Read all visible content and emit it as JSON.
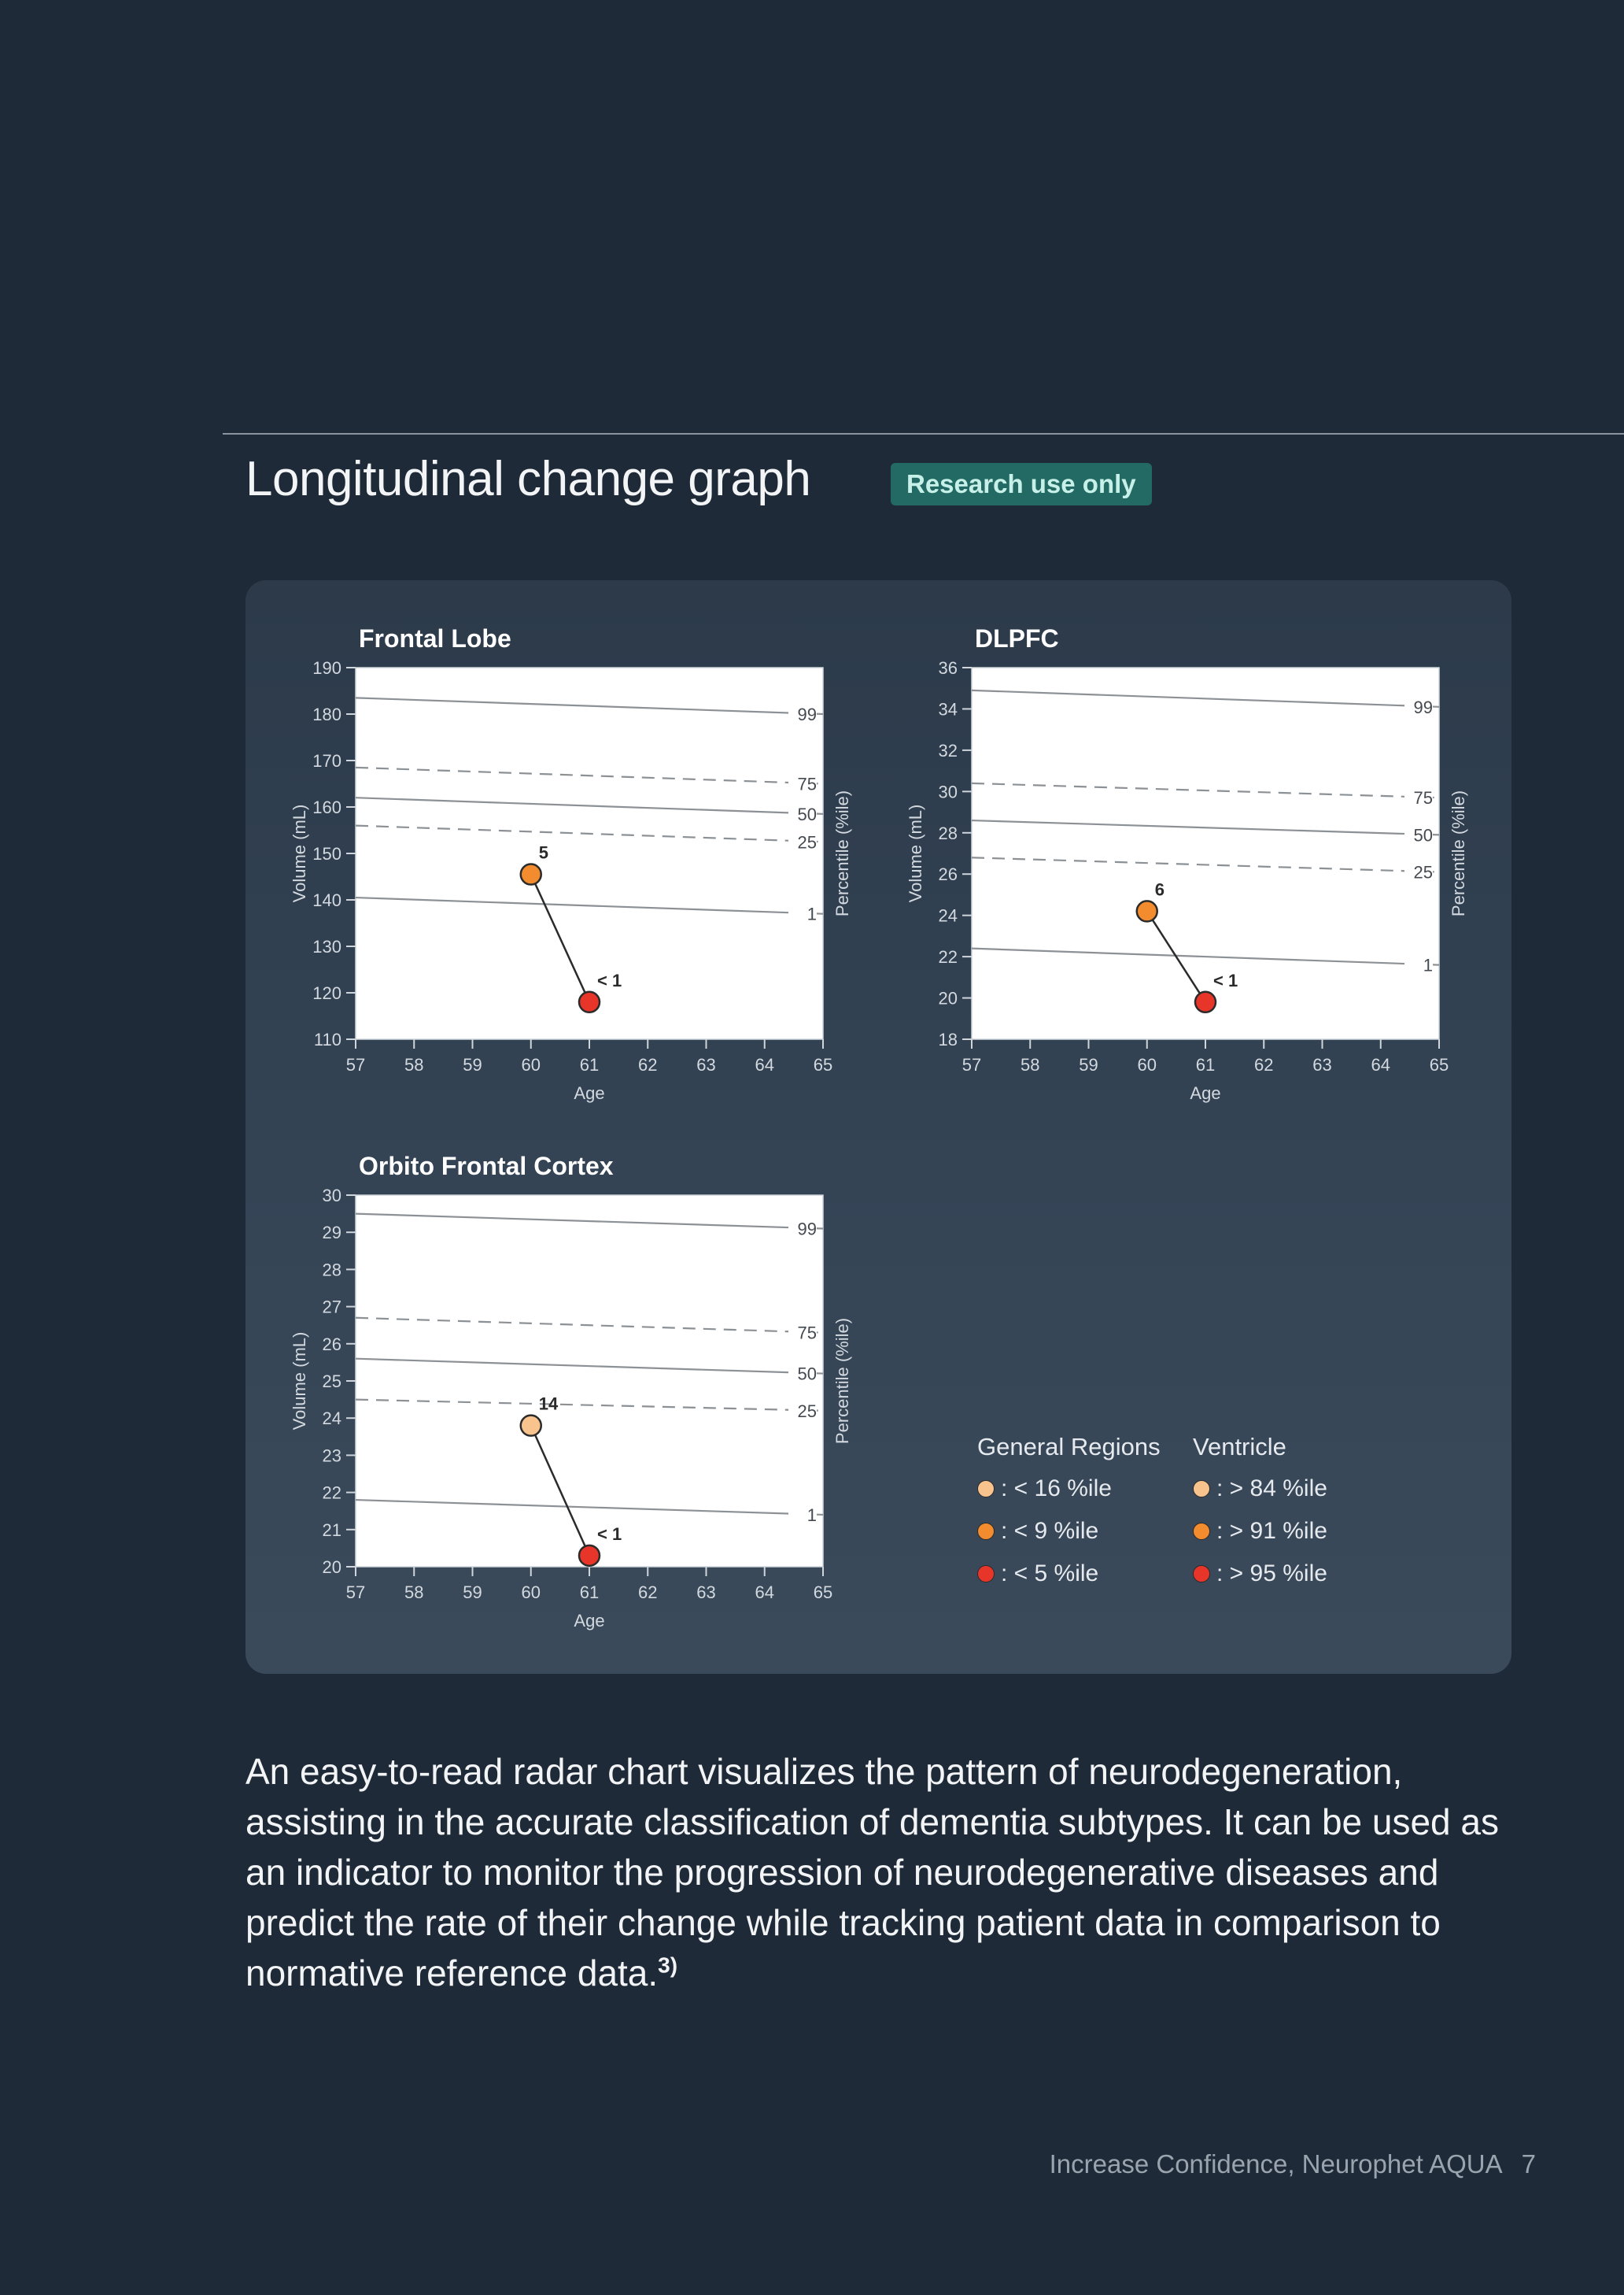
{
  "header": {
    "title": "Longitudinal change graph",
    "badge": "Research use only"
  },
  "chart_data": [
    {
      "type": "line",
      "title": "Frontal Lobe",
      "xlabel": "Age",
      "ylabel": "Volume (mL)",
      "y2label": "Percentile (%ile)",
      "xlim": [
        57,
        65
      ],
      "ylim": [
        110,
        190
      ],
      "xticks": [
        57,
        58,
        59,
        60,
        61,
        62,
        63,
        64,
        65
      ],
      "yticks": [
        110,
        120,
        130,
        140,
        150,
        160,
        170,
        180,
        190
      ],
      "percentile_lines": [
        {
          "label": "99",
          "start": 183.5,
          "end": 180.0,
          "style": "solid"
        },
        {
          "label": "75",
          "start": 168.5,
          "end": 165.0,
          "style": "dashed"
        },
        {
          "label": "50",
          "start": 162.0,
          "end": 158.5,
          "style": "solid"
        },
        {
          "label": "25",
          "start": 156.0,
          "end": 152.5,
          "style": "dashed"
        },
        {
          "label": "1",
          "start": 140.5,
          "end": 137.0,
          "style": "solid"
        }
      ],
      "points": [
        {
          "x": 60,
          "y": 145.5,
          "label": "5",
          "color": "#f28c2e"
        },
        {
          "x": 61,
          "y": 118.0,
          "label": "< 1",
          "color": "#e8352a"
        }
      ]
    },
    {
      "type": "line",
      "title": "DLPFC",
      "xlabel": "Age",
      "ylabel": "Volume (mL)",
      "y2label": "Percentile (%ile)",
      "xlim": [
        57,
        65
      ],
      "ylim": [
        18,
        36
      ],
      "xticks": [
        57,
        58,
        59,
        60,
        61,
        62,
        63,
        64,
        65
      ],
      "yticks": [
        18,
        20,
        22,
        24,
        26,
        28,
        30,
        32,
        34,
        36
      ],
      "percentile_lines": [
        {
          "label": "99",
          "start": 34.9,
          "end": 34.1,
          "style": "solid"
        },
        {
          "label": "75",
          "start": 30.4,
          "end": 29.7,
          "style": "dashed"
        },
        {
          "label": "50",
          "start": 28.6,
          "end": 27.9,
          "style": "solid"
        },
        {
          "label": "25",
          "start": 26.8,
          "end": 26.1,
          "style": "dashed"
        },
        {
          "label": "1",
          "start": 22.4,
          "end": 21.6,
          "style": "solid"
        }
      ],
      "points": [
        {
          "x": 60,
          "y": 24.2,
          "label": "6",
          "color": "#f28c2e"
        },
        {
          "x": 61,
          "y": 19.8,
          "label": "< 1",
          "color": "#e8352a"
        }
      ]
    },
    {
      "type": "line",
      "title": "Orbito Frontal Cortex",
      "xlabel": "Age",
      "ylabel": "Volume (mL)",
      "y2label": "Percentile (%ile)",
      "xlim": [
        57,
        65
      ],
      "ylim": [
        20,
        30
      ],
      "xticks": [
        57,
        58,
        59,
        60,
        61,
        62,
        63,
        64,
        65
      ],
      "yticks": [
        20,
        21,
        22,
        23,
        24,
        25,
        26,
        27,
        28,
        29,
        30
      ],
      "percentile_lines": [
        {
          "label": "99",
          "start": 29.5,
          "end": 29.1,
          "style": "solid"
        },
        {
          "label": "75",
          "start": 26.7,
          "end": 26.3,
          "style": "dashed"
        },
        {
          "label": "50",
          "start": 25.6,
          "end": 25.2,
          "style": "solid"
        },
        {
          "label": "25",
          "start": 24.5,
          "end": 24.2,
          "style": "dashed"
        },
        {
          "label": "1",
          "start": 21.8,
          "end": 21.4,
          "style": "solid"
        }
      ],
      "points": [
        {
          "x": 60,
          "y": 23.8,
          "label": "14",
          "color": "#f8c38d"
        },
        {
          "x": 61,
          "y": 20.3,
          "label": "< 1",
          "color": "#e8352a"
        }
      ]
    }
  ],
  "legend": {
    "general": {
      "heading": "General Regions",
      "items": [
        {
          "label": ": < 16 %ile",
          "color": "#f8c38d"
        },
        {
          "label": ": < 9 %ile",
          "color": "#f28c2e"
        },
        {
          "label": ": < 5 %ile",
          "color": "#e8352a"
        }
      ]
    },
    "ventricle": {
      "heading": "Ventricle",
      "items": [
        {
          "label": ": > 84 %ile",
          "color": "#f8c38d"
        },
        {
          "label": ": > 91 %ile",
          "color": "#f28c2e"
        },
        {
          "label": ": > 95 %ile",
          "color": "#e8352a"
        }
      ]
    }
  },
  "body": {
    "text": "An easy-to-read radar chart visualizes the pattern of neurodegeneration, assisting in the accurate classification of dementia subtypes. It can be used as an indicator to monitor the progression of neurodegenerative diseases and predict the rate of their change while tracking patient data in comparison to normative reference data.",
    "footnote": "3)"
  },
  "footer": {
    "text": "Increase Confidence, Neurophet AQUA",
    "page": "7"
  }
}
